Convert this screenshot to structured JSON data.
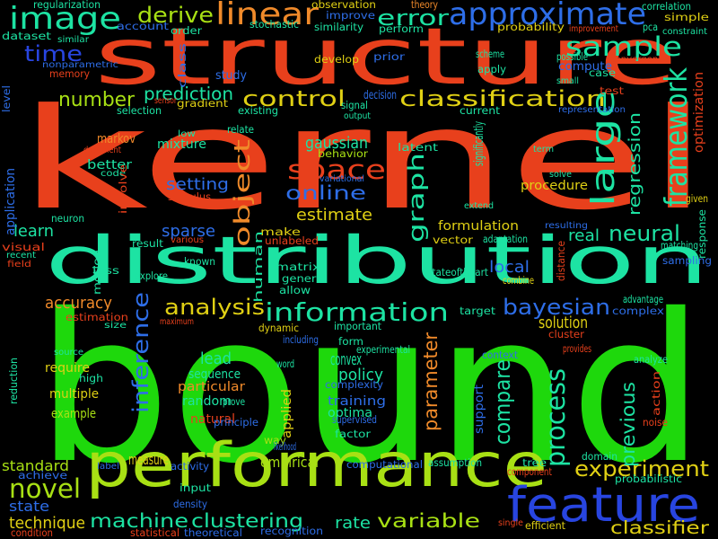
{
  "words": [
    {
      "text": "kernel",
      "color": "#e8401c"
    },
    {
      "text": "bound",
      "color": "#1ed80c"
    },
    {
      "text": "structure",
      "color": "#e8401c"
    },
    {
      "text": "distribution",
      "color": "#1de3a3"
    },
    {
      "text": "performance",
      "color": "#a8e014"
    },
    {
      "text": "feature",
      "color": "#2845e0"
    },
    {
      "text": "approximate",
      "color": "#2e6ee8"
    },
    {
      "text": "image",
      "color": "#1de3a3"
    },
    {
      "text": "linear",
      "color": "#f08a2a"
    },
    {
      "text": "sample",
      "color": "#1de3a3"
    },
    {
      "text": "derive",
      "color": "#a8e014"
    },
    {
      "text": "error",
      "color": "#1de3a3"
    },
    {
      "text": "time",
      "color": "#2845e0"
    },
    {
      "text": "framework",
      "color": "#1de3a3"
    },
    {
      "text": "classification",
      "color": "#e0d014"
    },
    {
      "text": "control",
      "color": "#e0d014"
    },
    {
      "text": "number",
      "color": "#a8e014"
    },
    {
      "text": "prediction",
      "color": "#1de3a3"
    },
    {
      "text": "large",
      "color": "#1de3a3"
    },
    {
      "text": "space",
      "color": "#e8401c"
    },
    {
      "text": "object",
      "color": "#f08a2a"
    },
    {
      "text": "graph",
      "color": "#1de3a3"
    },
    {
      "text": "online",
      "color": "#2e6ee8"
    },
    {
      "text": "estimate",
      "color": "#e0d014"
    },
    {
      "text": "setting",
      "color": "#2e6ee8"
    },
    {
      "text": "gaussian",
      "color": "#1de3a3"
    },
    {
      "text": "mixture",
      "color": "#1de3a3"
    },
    {
      "text": "neural",
      "color": "#1de3a3"
    },
    {
      "text": "regression",
      "color": "#1de3a3"
    },
    {
      "text": "information",
      "color": "#1de3a3"
    },
    {
      "text": "analysis",
      "color": "#e0d014"
    },
    {
      "text": "bayesian",
      "color": "#2e6ee8"
    },
    {
      "text": "inference",
      "color": "#2e6ee8"
    },
    {
      "text": "process",
      "color": "#1de3a3"
    },
    {
      "text": "compare",
      "color": "#1de3a3"
    },
    {
      "text": "parameter",
      "color": "#f08a2a"
    },
    {
      "text": "experiment",
      "color": "#e0d014"
    },
    {
      "text": "machine",
      "color": "#1de3a3"
    },
    {
      "text": "clustering",
      "color": "#1de3a3"
    },
    {
      "text": "variable",
      "color": "#a8e014"
    },
    {
      "text": "novel",
      "color": "#a8e014"
    },
    {
      "text": "classifier",
      "color": "#e0d014"
    },
    {
      "text": "sparse",
      "color": "#2e6ee8"
    },
    {
      "text": "learn",
      "color": "#1de3a3"
    },
    {
      "text": "accuracy",
      "color": "#f08a2a"
    },
    {
      "text": "convex",
      "color": "#1de3a3"
    },
    {
      "text": "policy",
      "color": "#1de3a3"
    },
    {
      "text": "solution",
      "color": "#e0d014"
    },
    {
      "text": "previous",
      "color": "#1de3a3"
    },
    {
      "text": "lead",
      "color": "#1de3a3"
    },
    {
      "text": "measure",
      "color": "#e0d014"
    },
    {
      "text": "empirical",
      "color": "#a8e014"
    },
    {
      "text": "technique",
      "color": "#e0d014"
    },
    {
      "text": "state",
      "color": "#2e6ee8"
    },
    {
      "text": "standard",
      "color": "#a8e014"
    },
    {
      "text": "rate",
      "color": "#1de3a3"
    },
    {
      "text": "local",
      "color": "#2e6ee8"
    },
    {
      "text": "real",
      "color": "#1de3a3"
    },
    {
      "text": "formulation",
      "color": "#e0d014"
    },
    {
      "text": "procedure",
      "color": "#e0d014"
    },
    {
      "text": "training",
      "color": "#2e6ee8"
    },
    {
      "text": "optima",
      "color": "#1de3a3"
    },
    {
      "text": "random",
      "color": "#1de3a3"
    },
    {
      "text": "sequence",
      "color": "#1de3a3"
    },
    {
      "text": "particular",
      "color": "#f08a2a"
    },
    {
      "text": "natural",
      "color": "#e8401c"
    },
    {
      "text": "multiple",
      "color": "#e0d014"
    },
    {
      "text": "require",
      "color": "#e0d014"
    },
    {
      "text": "example",
      "color": "#a8e014"
    },
    {
      "text": "better",
      "color": "#1de3a3"
    },
    {
      "text": "markov",
      "color": "#f08a2a"
    },
    {
      "text": "dataset",
      "color": "#1de3a3"
    },
    {
      "text": "account",
      "color": "#2e6ee8"
    },
    {
      "text": "stochastic",
      "color": "#1de3a3"
    },
    {
      "text": "improve",
      "color": "#2e6ee8"
    },
    {
      "text": "observation",
      "color": "#e0d014"
    },
    {
      "text": "perform",
      "color": "#1de3a3"
    },
    {
      "text": "probability",
      "color": "#e0d014"
    },
    {
      "text": "simple",
      "color": "#e0d014"
    },
    {
      "text": "pca",
      "color": "#1de3a3"
    },
    {
      "text": "constraint",
      "color": "#1de3a3"
    },
    {
      "text": "correlation",
      "color": "#1de3a3"
    },
    {
      "text": "regularization",
      "color": "#1de3a3"
    },
    {
      "text": "theory",
      "color": "#f08a2a"
    },
    {
      "text": "order",
      "color": "#1de3a3"
    },
    {
      "text": "similarity",
      "color": "#1de3a3"
    },
    {
      "text": "develop",
      "color": "#e0d014"
    },
    {
      "text": "prior",
      "color": "#2e6ee8"
    },
    {
      "text": "scheme",
      "color": "#1de3a3"
    },
    {
      "text": "apply",
      "color": "#1de3a3"
    },
    {
      "text": "compute",
      "color": "#2e6ee8"
    },
    {
      "text": "case",
      "color": "#1de3a3"
    },
    {
      "text": "small",
      "color": "#1de3a3"
    },
    {
      "text": "possible",
      "color": "#1de3a3"
    },
    {
      "text": "convergence",
      "color": "#e8401c"
    },
    {
      "text": "improvement",
      "color": "#e8401c"
    },
    {
      "text": "test",
      "color": "#e8401c"
    },
    {
      "text": "decision",
      "color": "#2e6ee8"
    },
    {
      "text": "signal",
      "color": "#1de3a3"
    },
    {
      "text": "output",
      "color": "#1de3a3"
    },
    {
      "text": "current",
      "color": "#1de3a3"
    },
    {
      "text": "representation",
      "color": "#2e6ee8"
    },
    {
      "text": "optimization",
      "color": "#e8401c"
    },
    {
      "text": "study",
      "color": "#2e6ee8"
    },
    {
      "text": "existing",
      "color": "#1de3a3"
    },
    {
      "text": "gradient",
      "color": "#e0d014"
    },
    {
      "text": "relate",
      "color": "#1de3a3"
    },
    {
      "text": "low",
      "color": "#1de3a3"
    },
    {
      "text": "behavior",
      "color": "#a8e014"
    },
    {
      "text": "latent",
      "color": "#1de3a3"
    },
    {
      "text": "significantly",
      "color": "#1de3a3"
    },
    {
      "text": "term",
      "color": "#1de3a3"
    },
    {
      "text": "solve",
      "color": "#1de3a3"
    },
    {
      "text": "given",
      "color": "#e0d014"
    },
    {
      "text": "variational",
      "color": "#2e6ee8"
    },
    {
      "text": "extend",
      "color": "#1de3a3"
    },
    {
      "text": "resulting",
      "color": "#2e6ee8"
    },
    {
      "text": "adaptation",
      "color": "#1de3a3"
    },
    {
      "text": "matching",
      "color": "#1de3a3"
    },
    {
      "text": "response",
      "color": "#1de3a3"
    },
    {
      "text": "vector",
      "color": "#e0d014"
    },
    {
      "text": "make",
      "color": "#e0d014"
    },
    {
      "text": "unlabeled",
      "color": "#e8401c"
    },
    {
      "text": "human",
      "color": "#1de3a3"
    },
    {
      "text": "matrix",
      "color": "#1de3a3"
    },
    {
      "text": "general",
      "color": "#1de3a3"
    },
    {
      "text": "allow",
      "color": "#1de3a3"
    },
    {
      "text": "combine",
      "color": "#e0d014"
    },
    {
      "text": "stateoftheart",
      "color": "#1de3a3"
    },
    {
      "text": "target",
      "color": "#1de3a3"
    },
    {
      "text": "complex",
      "color": "#2e6ee8"
    },
    {
      "text": "cluster",
      "color": "#e8401c"
    },
    {
      "text": "advantage",
      "color": "#1de3a3"
    },
    {
      "text": "sampling",
      "color": "#2e6ee8"
    },
    {
      "text": "distance",
      "color": "#e8401c"
    },
    {
      "text": "important",
      "color": "#1de3a3"
    },
    {
      "text": "dynamic",
      "color": "#e0d014"
    },
    {
      "text": "including",
      "color": "#2e6ee8"
    },
    {
      "text": "form",
      "color": "#1de3a3"
    },
    {
      "text": "experimental",
      "color": "#1de3a3"
    },
    {
      "text": "context",
      "color": "#2e6ee8"
    },
    {
      "text": "provides",
      "color": "#e8401c"
    },
    {
      "text": "analyze",
      "color": "#1de3a3"
    },
    {
      "text": "action",
      "color": "#e8401c"
    },
    {
      "text": "noise",
      "color": "#e8401c"
    },
    {
      "text": "word",
      "color": "#1de3a3"
    },
    {
      "text": "complexity",
      "color": "#2e6ee8"
    },
    {
      "text": "support",
      "color": "#2e6ee8"
    },
    {
      "text": "supervised",
      "color": "#2e6ee8"
    },
    {
      "text": "factor",
      "color": "#1de3a3"
    },
    {
      "text": "applied",
      "color": "#e0d014"
    },
    {
      "text": "way",
      "color": "#a8e014"
    },
    {
      "text": "likelihood",
      "color": "#2e6ee8"
    },
    {
      "text": "principle",
      "color": "#2e6ee8"
    },
    {
      "text": "prove",
      "color": "#1de3a3"
    },
    {
      "text": "domain",
      "color": "#1de3a3"
    },
    {
      "text": "tree",
      "color": "#1de3a3"
    },
    {
      "text": "probabilistic",
      "color": "#1de3a3"
    },
    {
      "text": "component",
      "color": "#e8401c"
    },
    {
      "text": "assumption",
      "color": "#1de3a3"
    },
    {
      "text": "computational",
      "color": "#2e6ee8"
    },
    {
      "text": "efficient",
      "color": "#e0d014"
    },
    {
      "text": "single",
      "color": "#e8401c"
    },
    {
      "text": "recognition",
      "color": "#2e6ee8"
    },
    {
      "text": "theoretical",
      "color": "#2e6ee8"
    },
    {
      "text": "statistical",
      "color": "#e8401c"
    },
    {
      "text": "input",
      "color": "#1de3a3"
    },
    {
      "text": "density",
      "color": "#2e6ee8"
    },
    {
      "text": "activity",
      "color": "#2e6ee8"
    },
    {
      "text": "label",
      "color": "#2e6ee8"
    },
    {
      "text": "achieve",
      "color": "#2e6ee8"
    },
    {
      "text": "condition",
      "color": "#e8401c"
    },
    {
      "text": "source",
      "color": "#1de3a3"
    },
    {
      "text": "high",
      "color": "#1de3a3"
    },
    {
      "text": "estimation",
      "color": "#e8401c"
    },
    {
      "text": "size",
      "color": "#1de3a3"
    },
    {
      "text": "maximum",
      "color": "#e8401c"
    },
    {
      "text": "explore",
      "color": "#1de3a3"
    },
    {
      "text": "loss",
      "color": "#1de3a3"
    },
    {
      "text": "motion",
      "color": "#1de3a3"
    },
    {
      "text": "known",
      "color": "#1de3a3"
    },
    {
      "text": "result",
      "color": "#1de3a3"
    },
    {
      "text": "various",
      "color": "#e8401c"
    },
    {
      "text": "visual",
      "color": "#e8401c"
    },
    {
      "text": "recent",
      "color": "#1de3a3"
    },
    {
      "text": "field",
      "color": "#e8401c"
    },
    {
      "text": "neuron",
      "color": "#1de3a3"
    },
    {
      "text": "application",
      "color": "#2e6ee8"
    },
    {
      "text": "reduction",
      "color": "#1de3a3"
    },
    {
      "text": "level",
      "color": "#2e6ee8"
    },
    {
      "text": "nonparametric",
      "color": "#2e6ee8"
    },
    {
      "text": "memory",
      "color": "#e8401c"
    },
    {
      "text": "similar",
      "color": "#1de3a3"
    },
    {
      "text": "class",
      "color": "#2e6ee8"
    },
    {
      "text": "selection",
      "color": "#1de3a3"
    },
    {
      "text": "sensor",
      "color": "#e8401c"
    },
    {
      "text": "document",
      "color": "#e8401c"
    },
    {
      "text": "code",
      "color": "#1de3a3"
    },
    {
      "text": "involve",
      "color": "#e8401c"
    },
    {
      "text": "stimulus",
      "color": "#e8401c"
    }
  ]
}
